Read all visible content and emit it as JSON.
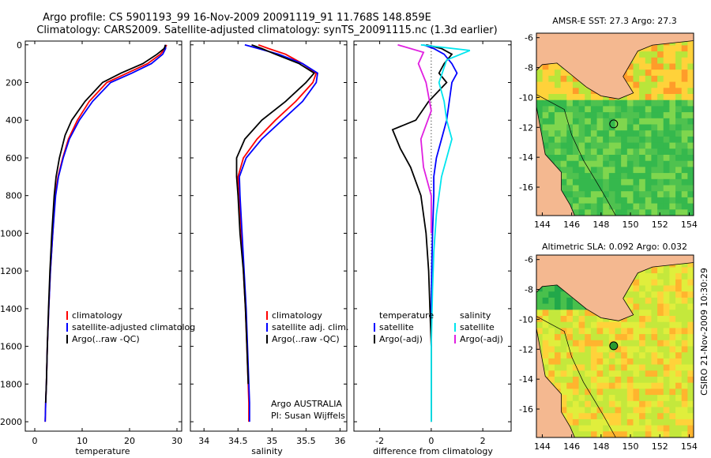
{
  "header": {
    "line1": "Argo profile: CS 5901193_99 16-Nov-2009 20091119_91 11.768S 148.859E",
    "line2": "Climatology: CARS2009. Satellite-adjusted climatology: synTS_20091115.nc (1.3d earlier)"
  },
  "colors": {
    "climatology": "#ff0000",
    "satellite": "#0000ff",
    "argo": "#000000",
    "diff_satellite": "#00e5ee",
    "diff_argo": "#e020e0",
    "land": "#f4b890",
    "map_dot": "#2a9a30"
  },
  "chart_data": [
    {
      "type": "line",
      "name": "temperature-profile",
      "xlabel": "temperature",
      "ylabel": "",
      "xlim": [
        -2,
        31
      ],
      "ylim": [
        2050,
        0
      ],
      "xticks": [
        "0",
        "10",
        "20",
        "30"
      ],
      "yticks": [
        "0",
        "200",
        "400",
        "600",
        "800",
        "1000",
        "1200",
        "1400",
        "1600",
        "1800",
        "2000"
      ],
      "legend_labels": [
        "climatology",
        "satellite-adjusted climatolog",
        "Argo(..raw -QC)"
      ],
      "series": [
        {
          "name": "climatology",
          "color": "#ff0000",
          "x": [
            27.8,
            27.5,
            26.5,
            23.8,
            19.5,
            15.2,
            11.5,
            9.0,
            7.1,
            5.9,
            4.9,
            4.3,
            3.8,
            3.3,
            2.95,
            2.65,
            2.45,
            2.3,
            2.2
          ],
          "depth": [
            0,
            20,
            50,
            100,
            150,
            200,
            300,
            400,
            500,
            600,
            700,
            800,
            1000,
            1200,
            1400,
            1600,
            1800,
            1900,
            2000
          ]
        },
        {
          "name": "satellite",
          "color": "#0000ff",
          "x": [
            27.5,
            27.6,
            27.0,
            24.6,
            20.5,
            16.0,
            12.2,
            9.4,
            7.3,
            6.0,
            5.0,
            4.4,
            3.8,
            3.3,
            2.95,
            2.65,
            2.45,
            2.3,
            2.2
          ],
          "depth": [
            0,
            20,
            50,
            100,
            150,
            200,
            300,
            400,
            500,
            600,
            700,
            800,
            1000,
            1200,
            1400,
            1600,
            1800,
            1900,
            2000
          ]
        },
        {
          "name": "Argo",
          "color": "#000000",
          "x": [
            27.6,
            27.3,
            25.8,
            22.8,
            18.2,
            14.3,
            10.6,
            7.8,
            6.4,
            5.2,
            4.5,
            4.1,
            3.6,
            3.2,
            2.9,
            2.65,
            2.45,
            2.3
          ],
          "depth": [
            0,
            20,
            50,
            100,
            150,
            200,
            300,
            400,
            480,
            600,
            700,
            800,
            1000,
            1200,
            1400,
            1600,
            1800,
            1900
          ]
        }
      ]
    },
    {
      "type": "line",
      "name": "salinity-profile",
      "xlabel": "salinity",
      "ylabel": "",
      "xlim": [
        33.8,
        36.1
      ],
      "ylim": [
        2050,
        0
      ],
      "xticks": [
        "34",
        "34.5",
        "35",
        "35.5",
        "36"
      ],
      "legend_labels": [
        "climatology",
        "satellite adj. clim.",
        "Argo(..raw -QC)"
      ],
      "annotations": [
        "Argo AUSTRALIA",
        "PI: Susan Wijffels"
      ],
      "series": [
        {
          "name": "climatology",
          "color": "#ff0000",
          "x": [
            34.8,
            34.95,
            35.2,
            35.45,
            35.65,
            35.6,
            35.35,
            35.05,
            34.78,
            34.58,
            34.5,
            34.52,
            34.55,
            34.58,
            34.61,
            34.63,
            34.65,
            34.66,
            34.66
          ],
          "depth": [
            0,
            20,
            50,
            100,
            150,
            200,
            300,
            400,
            500,
            600,
            700,
            800,
            1000,
            1200,
            1400,
            1600,
            1800,
            1900,
            2000
          ]
        },
        {
          "name": "satellite",
          "color": "#0000ff",
          "x": [
            34.6,
            34.8,
            35.1,
            35.45,
            35.67,
            35.65,
            35.45,
            35.15,
            34.85,
            34.62,
            34.52,
            34.53,
            34.56,
            34.59,
            34.62,
            34.64,
            34.66,
            34.67,
            34.67
          ],
          "depth": [
            0,
            20,
            50,
            100,
            150,
            200,
            300,
            400,
            500,
            600,
            700,
            800,
            1000,
            1200,
            1400,
            1600,
            1800,
            1900,
            2000
          ]
        },
        {
          "name": "Argo",
          "color": "#000000",
          "x": [
            34.7,
            34.85,
            35.05,
            35.4,
            35.62,
            35.5,
            35.2,
            34.85,
            34.6,
            34.48,
            34.48,
            34.5,
            34.53,
            34.58,
            34.61,
            34.63,
            34.65
          ],
          "depth": [
            0,
            20,
            50,
            100,
            150,
            200,
            300,
            400,
            500,
            600,
            700,
            800,
            1000,
            1200,
            1400,
            1600,
            1800
          ]
        }
      ]
    },
    {
      "type": "line",
      "name": "difference-profile",
      "xlabel": "difference from climatology",
      "ylabel": "",
      "xlim": [
        -3,
        3.1
      ],
      "ylim": [
        2050,
        0
      ],
      "xticks": [
        "-2",
        "0",
        "2"
      ],
      "legend_titles": [
        "temperature",
        "salinity"
      ],
      "legend_labels": [
        "satellite",
        "Argo(-adj)",
        "satellite",
        "Argo(-adj)"
      ],
      "series": [
        {
          "name": "temperature satellite",
          "color": "#0000ff",
          "x": [
            -0.3,
            0.1,
            0.5,
            0.8,
            1.0,
            0.8,
            0.7,
            0.6,
            0.4,
            0.2,
            0.1,
            0.1,
            0.05,
            0.02,
            0.0,
            0.0
          ],
          "depth": [
            0,
            20,
            50,
            100,
            150,
            200,
            300,
            400,
            500,
            600,
            700,
            800,
            1000,
            1200,
            1400,
            1600
          ]
        },
        {
          "name": "temperature Argo",
          "color": "#000000",
          "x": [
            -0.2,
            0.4,
            0.8,
            0.5,
            0.3,
            0.6,
            -0.1,
            -0.6,
            -1.5,
            -1.2,
            -0.8,
            -0.4,
            -0.2,
            -0.1,
            -0.05,
            0.0,
            0.0
          ],
          "depth": [
            0,
            20,
            50,
            100,
            150,
            200,
            300,
            400,
            450,
            550,
            650,
            800,
            1000,
            1200,
            1400,
            1600,
            2000
          ]
        },
        {
          "name": "salinity satellite",
          "color": "#00e5ee",
          "x": [
            -0.4,
            1.5,
            0.6,
            0.3,
            0.5,
            0.6,
            0.8,
            0.4,
            0.2,
            0.1,
            0.05,
            0.0,
            0.0
          ],
          "depth": [
            0,
            30,
            80,
            200,
            300,
            400,
            500,
            700,
            900,
            1100,
            1300,
            1600,
            2000
          ]
        },
        {
          "name": "salinity Argo",
          "color": "#e020e0",
          "x": [
            -1.3,
            -0.3,
            -0.5,
            -0.2,
            0.0,
            -0.4,
            -0.3,
            0.0,
            0.0
          ],
          "depth": [
            0,
            40,
            100,
            200,
            350,
            500,
            650,
            800,
            1000
          ]
        }
      ]
    },
    {
      "type": "heatmap",
      "name": "sst-map",
      "title": "AMSR-E SST: 27.3 Argo: 27.3",
      "xticks": [
        "144",
        "146",
        "148",
        "150",
        "152",
        "154"
      ],
      "yticks": [
        "-6",
        "-8",
        "-10",
        "-12",
        "-14",
        "-16"
      ]
    },
    {
      "type": "heatmap",
      "name": "sla-map",
      "title": "Altimetric SLA: 0.092 Argo: 0.032",
      "xticks": [
        "144",
        "146",
        "148",
        "150",
        "152",
        "154"
      ],
      "yticks": [
        "-6",
        "-8",
        "-10",
        "-12",
        "-14",
        "-16"
      ],
      "side_label": "CSIRO 21-Nov-2009 10:30:29"
    }
  ]
}
